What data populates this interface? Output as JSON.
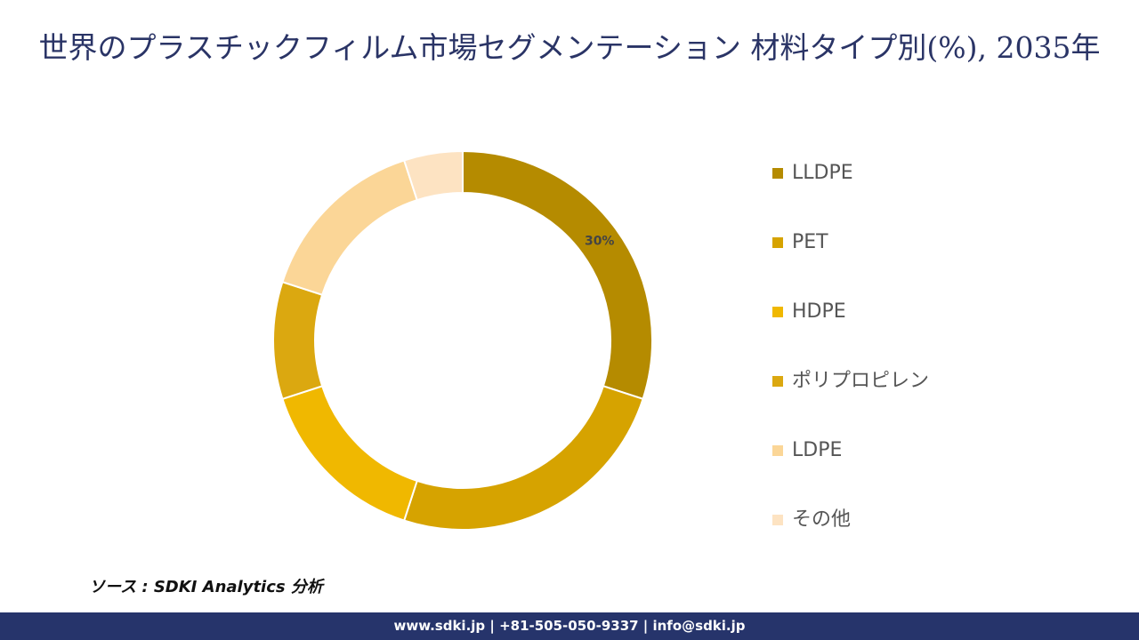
{
  "chart_data": {
    "type": "donut",
    "title": "世界のプラスチックフィルム市場セグメンテーション 材料タイプ別(%), 2035年",
    "categories": [
      "LLDPE",
      "PET",
      "HDPE",
      "ポリプロピレン",
      "LDPE",
      "その他"
    ],
    "values": [
      30,
      25,
      15,
      10,
      15,
      5
    ],
    "value_labels": [
      "30%",
      null,
      null,
      null,
      null,
      null
    ],
    "colors": [
      "#b58b00",
      "#d6a300",
      "#f0b800",
      "#dba810",
      "#fbd697",
      "#fde3c2"
    ],
    "legend": "right"
  },
  "source": "ソース : SDKI Analytics 分析",
  "footer": "www.sdki.jp | +81-505-050-9337 | info@sdki.jp"
}
